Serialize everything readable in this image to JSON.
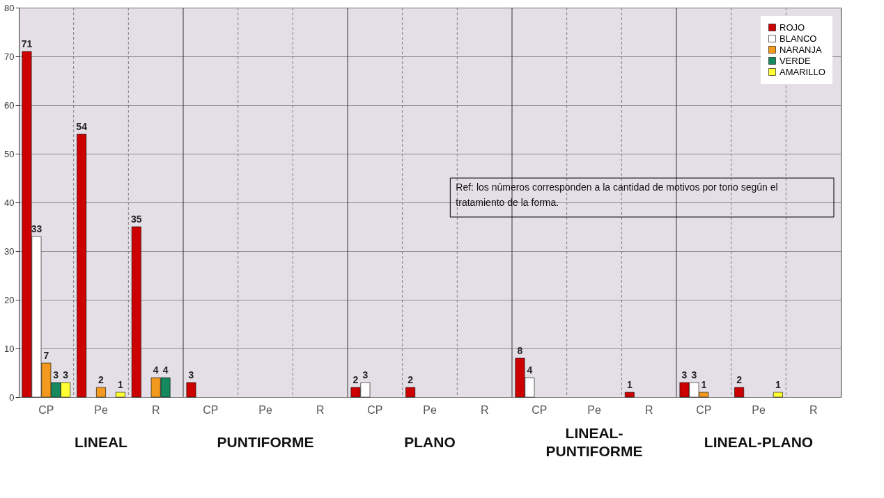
{
  "chart_data": {
    "type": "bar",
    "categories": [
      "CP",
      "Pe",
      "R",
      "CP",
      "Pe",
      "R",
      "CP",
      "Pe",
      "R",
      "CP",
      "Pe",
      "R",
      "CP",
      "Pe",
      "R"
    ],
    "series": [
      {
        "name": "ROJO",
        "color": "#cc0000",
        "values": [
          71,
          54,
          35,
          3,
          null,
          null,
          2,
          2,
          null,
          8,
          null,
          1,
          3,
          2,
          null
        ]
      },
      {
        "name": "BLANCO",
        "color": "#ffffff",
        "values": [
          33,
          null,
          null,
          null,
          null,
          null,
          3,
          null,
          null,
          4,
          null,
          null,
          3,
          null,
          null
        ]
      },
      {
        "name": "NARANJA",
        "color": "#f39a1e",
        "values": [
          7,
          2,
          4,
          null,
          null,
          null,
          null,
          null,
          null,
          null,
          null,
          null,
          1,
          null,
          null
        ]
      },
      {
        "name": "VERDE",
        "color": "#168a5e",
        "values": [
          3,
          null,
          4,
          null,
          null,
          null,
          null,
          null,
          null,
          null,
          null,
          null,
          null,
          null,
          null
        ]
      },
      {
        "name": "AMARILLO",
        "color": "#ffff33",
        "values": [
          3,
          1,
          null,
          null,
          null,
          null,
          null,
          null,
          null,
          null,
          null,
          null,
          null,
          1,
          null
        ]
      }
    ],
    "ylim": [
      0,
      80
    ],
    "yticks": [
      0,
      10,
      20,
      30,
      40,
      50,
      60,
      70,
      80
    ],
    "grid": true,
    "legend": "top right",
    "data_labels": true,
    "annotations": [
      "LINEAL",
      "PUNTIFORME",
      "PLANO",
      "LINEAL-PUNTIFORME",
      "LINEAL-PLANO",
      "Ref: los números corresponden a la cantidad de motivos por tono según el tratamiento de la forma."
    ]
  }
}
